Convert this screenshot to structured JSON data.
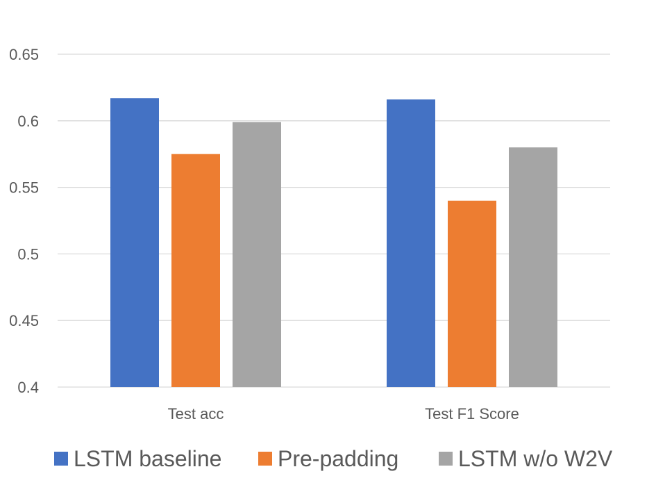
{
  "chart_data": {
    "type": "bar",
    "title": "",
    "xlabel": "",
    "ylabel": "",
    "categories": [
      "Test acc",
      "Test F1 Score"
    ],
    "series": [
      {
        "name": "LSTM baseline",
        "color": "#4472c4",
        "values": [
          0.617,
          0.616
        ]
      },
      {
        "name": "Pre-padding",
        "color": "#ed7d31",
        "values": [
          0.575,
          0.54
        ]
      },
      {
        "name": "LSTM w/o W2V",
        "color": "#a5a5a5",
        "values": [
          0.599,
          0.58
        ]
      }
    ],
    "ylim": [
      0.4,
      0.65
    ],
    "yticks": [
      "0.4",
      "0.45",
      "0.5",
      "0.55",
      "0.6",
      "0.65"
    ],
    "grid": true,
    "legend_position": "bottom"
  }
}
